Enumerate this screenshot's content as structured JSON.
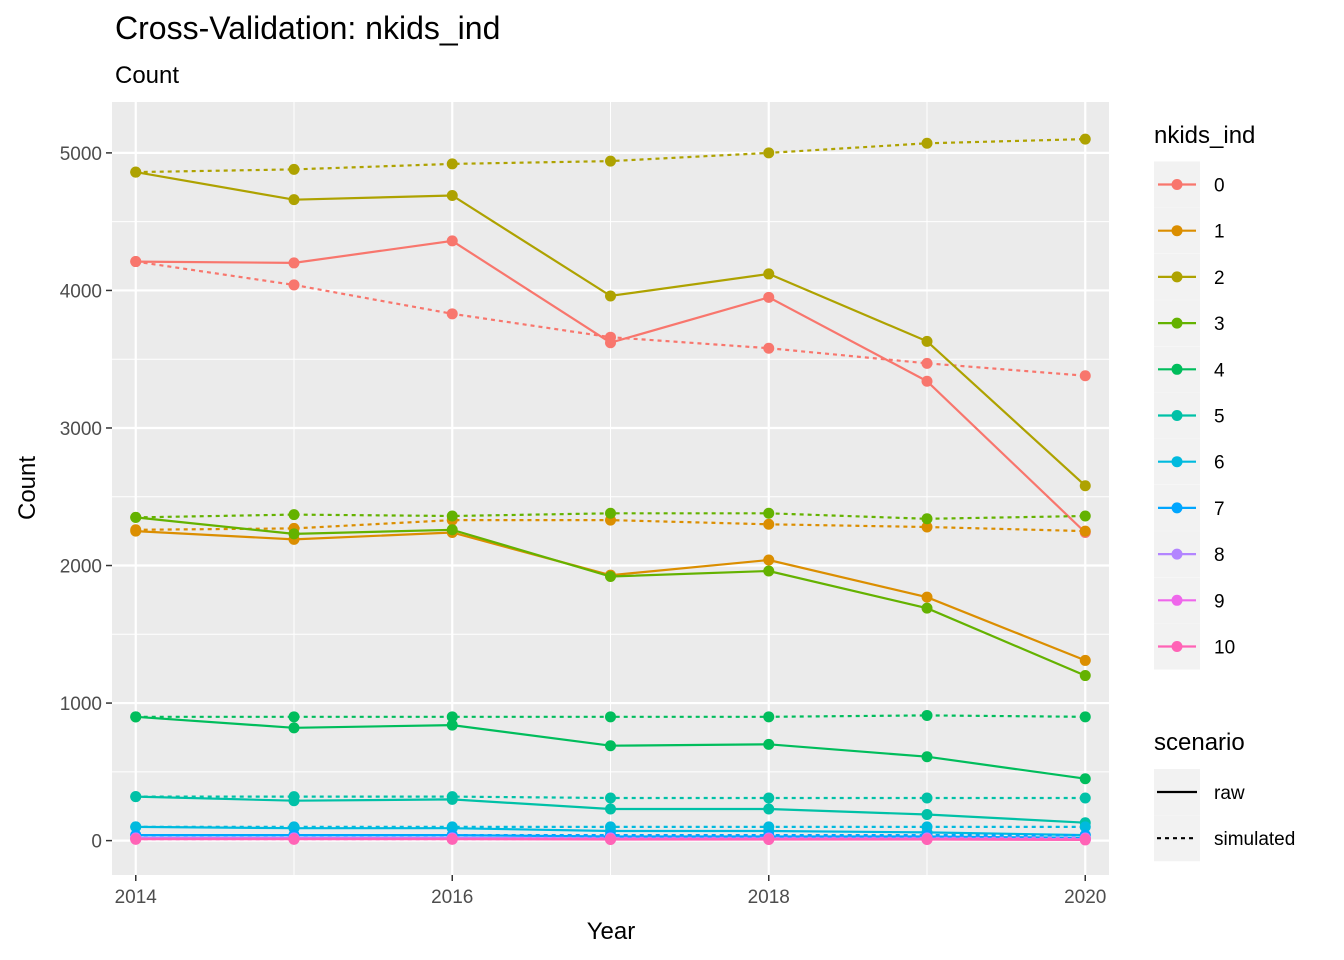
{
  "chart_data": {
    "type": "line",
    "title": "Cross-Validation: nkids_ind",
    "subtitle": "Count",
    "xlabel": "Year",
    "ylabel": "Count",
    "x": [
      2014,
      2015,
      2016,
      2017,
      2018,
      2019,
      2020
    ],
    "xticks": [
      2014,
      2016,
      2018,
      2020
    ],
    "xlim": [
      2013.85,
      2020.15
    ],
    "yticks": [
      0,
      1000,
      2000,
      3000,
      4000,
      5000
    ],
    "ylim": [
      -250,
      5370
    ],
    "grid": true,
    "legend_position": "right",
    "color_legend": {
      "title": "nkids_ind",
      "entries": [
        {
          "label": "0",
          "color": "#F8766D"
        },
        {
          "label": "1",
          "color": "#DB8E00"
        },
        {
          "label": "2",
          "color": "#AEA200"
        },
        {
          "label": "3",
          "color": "#64B200"
        },
        {
          "label": "4",
          "color": "#00BD5C"
        },
        {
          "label": "5",
          "color": "#00C1A7"
        },
        {
          "label": "6",
          "color": "#00BADE"
        },
        {
          "label": "7",
          "color": "#00A6FF"
        },
        {
          "label": "8",
          "color": "#B385FF"
        },
        {
          "label": "9",
          "color": "#EF67EB"
        },
        {
          "label": "10",
          "color": "#FF63B6"
        }
      ]
    },
    "linetype_legend": {
      "title": "scenario",
      "entries": [
        {
          "label": "raw",
          "dash": "solid"
        },
        {
          "label": "simulated",
          "dash": "dotted"
        }
      ]
    },
    "series": [
      {
        "group": "0",
        "scenario": "raw",
        "values": [
          4210,
          4200,
          4360,
          3620,
          3950,
          3340,
          2240
        ]
      },
      {
        "group": "0",
        "scenario": "simulated",
        "values": [
          4210,
          4040,
          3830,
          3660,
          3580,
          3470,
          3380
        ]
      },
      {
        "group": "1",
        "scenario": "raw",
        "values": [
          2250,
          2190,
          2240,
          1930,
          2040,
          1770,
          1310
        ]
      },
      {
        "group": "1",
        "scenario": "simulated",
        "values": [
          2260,
          2270,
          2330,
          2330,
          2300,
          2280,
          2250
        ]
      },
      {
        "group": "2",
        "scenario": "raw",
        "values": [
          4860,
          4660,
          4690,
          3960,
          4120,
          3630,
          2580
        ]
      },
      {
        "group": "2",
        "scenario": "simulated",
        "values": [
          4860,
          4880,
          4920,
          4940,
          5000,
          5070,
          5100
        ]
      },
      {
        "group": "3",
        "scenario": "raw",
        "values": [
          2350,
          2230,
          2260,
          1920,
          1960,
          1690,
          1200
        ]
      },
      {
        "group": "3",
        "scenario": "simulated",
        "values": [
          2350,
          2370,
          2360,
          2380,
          2380,
          2340,
          2360
        ]
      },
      {
        "group": "4",
        "scenario": "raw",
        "values": [
          900,
          820,
          840,
          690,
          700,
          610,
          450
        ]
      },
      {
        "group": "4",
        "scenario": "simulated",
        "values": [
          900,
          900,
          900,
          900,
          900,
          910,
          900
        ]
      },
      {
        "group": "5",
        "scenario": "raw",
        "values": [
          320,
          290,
          300,
          230,
          230,
          190,
          130
        ]
      },
      {
        "group": "5",
        "scenario": "simulated",
        "values": [
          320,
          320,
          320,
          310,
          310,
          310,
          310
        ]
      },
      {
        "group": "6",
        "scenario": "raw",
        "values": [
          100,
          90,
          90,
          70,
          70,
          60,
          40
        ]
      },
      {
        "group": "6",
        "scenario": "simulated",
        "values": [
          100,
          100,
          100,
          100,
          100,
          100,
          100
        ]
      },
      {
        "group": "7",
        "scenario": "raw",
        "values": [
          40,
          40,
          40,
          30,
          30,
          30,
          20
        ]
      },
      {
        "group": "7",
        "scenario": "simulated",
        "values": [
          40,
          40,
          40,
          40,
          40,
          40,
          40
        ]
      },
      {
        "group": "8",
        "scenario": "raw",
        "values": [
          20,
          20,
          20,
          15,
          15,
          15,
          10
        ]
      },
      {
        "group": "8",
        "scenario": "simulated",
        "values": [
          20,
          20,
          20,
          20,
          20,
          20,
          20
        ]
      },
      {
        "group": "9",
        "scenario": "raw",
        "values": [
          15,
          15,
          15,
          10,
          10,
          10,
          8
        ]
      },
      {
        "group": "9",
        "scenario": "simulated",
        "values": [
          15,
          15,
          15,
          15,
          15,
          15,
          15
        ]
      },
      {
        "group": "10",
        "scenario": "raw",
        "values": [
          10,
          10,
          10,
          8,
          8,
          8,
          5
        ]
      },
      {
        "group": "10",
        "scenario": "simulated",
        "values": [
          10,
          10,
          10,
          10,
          10,
          10,
          10
        ]
      }
    ]
  }
}
